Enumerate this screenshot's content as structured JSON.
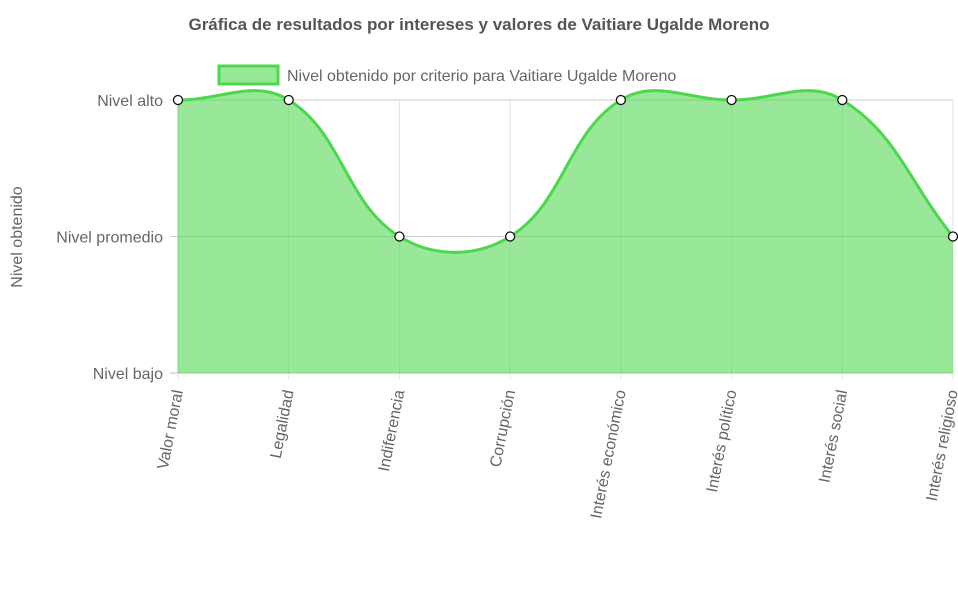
{
  "chart_data": {
    "type": "line",
    "title": "Gráfica de resultados por intereses y valores de Vaitiare Ugalde Moreno",
    "y_label": "Nivel obtenido",
    "categories": [
      "Valor moral",
      "Legalidad",
      "Indiferencia",
      "Corrupción",
      "Interés económico",
      "Interés político",
      "Interés social",
      "Interés religioso"
    ],
    "series": [
      {
        "name": "Nivel obtenido por criterio para Vaitiare Ugalde Moreno",
        "color": "#4cd84c",
        "fill": "rgba(80,214,80,0.58)",
        "values": [
          3,
          3,
          2,
          2,
          3,
          3,
          3,
          2
        ]
      }
    ],
    "ylim": [
      1,
      3
    ],
    "yticks": [
      {
        "value": 1,
        "label": "Nivel bajo"
      },
      {
        "value": 2,
        "label": "Nivel promedio"
      },
      {
        "value": 3,
        "label": "Nivel alto"
      }
    ],
    "grid": true,
    "legend": "top",
    "area": true,
    "tension": 0.4
  }
}
